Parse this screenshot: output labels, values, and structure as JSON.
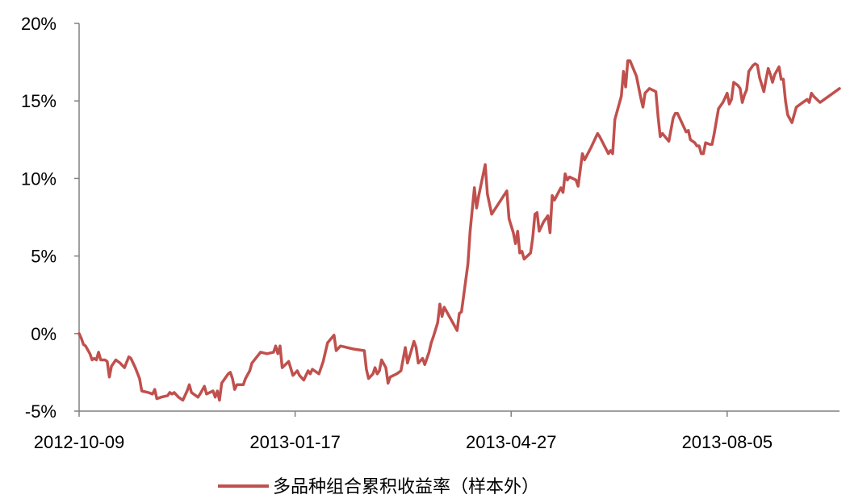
{
  "chart_data": {
    "type": "line",
    "title": "",
    "xlabel": "",
    "ylabel": "",
    "y_unit": "%",
    "ylim": [
      -5,
      20
    ],
    "y_ticks": [
      -5,
      0,
      5,
      10,
      15,
      20
    ],
    "y_tick_labels": [
      "-5%",
      "0%",
      "5%",
      "10%",
      "15%",
      "20%"
    ],
    "x_tick_labels": [
      "2012-10-09",
      "2013-01-17",
      "2013-04-27",
      "2013-08-05"
    ],
    "grid": false,
    "legend_position": "bottom",
    "colors": {
      "series": "#C0504D",
      "axis": "#808080"
    },
    "series": [
      {
        "name": "多品种组合累积收益率（样本外）",
        "points": [
          [
            "2012-10-09",
            0.0
          ],
          [
            "2012-10-10",
            -0.3
          ],
          [
            "2012-10-11",
            -0.7
          ],
          [
            "2012-10-12",
            -0.8
          ],
          [
            "2012-10-14",
            -1.3
          ],
          [
            "2012-10-15",
            -1.7
          ],
          [
            "2012-10-16",
            -1.6
          ],
          [
            "2012-10-17",
            -1.7
          ],
          [
            "2012-10-18",
            -1.2
          ],
          [
            "2012-10-19",
            -1.7
          ],
          [
            "2012-10-21",
            -1.7
          ],
          [
            "2012-10-22",
            -1.8
          ],
          [
            "2012-10-23",
            -2.8
          ],
          [
            "2012-10-24",
            -2.1
          ],
          [
            "2012-10-26",
            -1.7
          ],
          [
            "2012-10-28",
            -1.9
          ],
          [
            "2012-10-30",
            -2.2
          ],
          [
            "2012-11-01",
            -1.5
          ],
          [
            "2012-11-02",
            -1.6
          ],
          [
            "2012-11-04",
            -2.2
          ],
          [
            "2012-11-06",
            -2.9
          ],
          [
            "2012-11-07",
            -3.7
          ],
          [
            "2012-11-10",
            -3.8
          ],
          [
            "2012-11-12",
            -3.9
          ],
          [
            "2012-11-13",
            -3.6
          ],
          [
            "2012-11-14",
            -4.2
          ],
          [
            "2012-11-16",
            -4.1
          ],
          [
            "2012-11-19",
            -4.0
          ],
          [
            "2012-11-20",
            -3.8
          ],
          [
            "2012-11-21",
            -3.9
          ],
          [
            "2012-11-22",
            -3.8
          ],
          [
            "2012-11-24",
            -4.1
          ],
          [
            "2012-11-26",
            -4.3
          ],
          [
            "2012-11-28",
            -3.7
          ],
          [
            "2012-11-29",
            -3.3
          ],
          [
            "2012-11-30",
            -3.8
          ],
          [
            "2012-12-03",
            -4.1
          ],
          [
            "2012-12-04",
            -3.9
          ],
          [
            "2012-12-06",
            -3.4
          ],
          [
            "2012-12-07",
            -3.9
          ],
          [
            "2012-12-10",
            -3.7
          ],
          [
            "2012-12-11",
            -4.1
          ],
          [
            "2012-12-12",
            -3.7
          ],
          [
            "2012-12-13",
            -4.3
          ],
          [
            "2012-12-14",
            -3.2
          ],
          [
            "2012-12-17",
            -2.6
          ],
          [
            "2012-12-18",
            -2.5
          ],
          [
            "2012-12-19",
            -2.9
          ],
          [
            "2012-12-20",
            -3.6
          ],
          [
            "2012-12-21",
            -3.3
          ],
          [
            "2012-12-24",
            -3.3
          ],
          [
            "2012-12-25",
            -2.9
          ],
          [
            "2012-12-27",
            -2.4
          ],
          [
            "2012-12-28",
            -1.9
          ],
          [
            "2013-01-01",
            -1.2
          ],
          [
            "2013-01-04",
            -1.3
          ],
          [
            "2013-01-07",
            -1.2
          ],
          [
            "2013-01-08",
            -0.8
          ],
          [
            "2013-01-09",
            -1.3
          ],
          [
            "2013-01-10",
            -0.8
          ],
          [
            "2013-01-11",
            -2.2
          ],
          [
            "2013-01-14",
            -1.8
          ],
          [
            "2013-01-16",
            -2.7
          ],
          [
            "2013-01-18",
            -2.4
          ],
          [
            "2013-01-19",
            -2.7
          ],
          [
            "2013-01-21",
            -3.0
          ],
          [
            "2013-01-23",
            -2.4
          ],
          [
            "2013-01-24",
            -2.6
          ],
          [
            "2013-01-25",
            -2.3
          ],
          [
            "2013-01-26",
            -2.4
          ],
          [
            "2013-01-28",
            -2.6
          ],
          [
            "2013-01-30",
            -1.8
          ],
          [
            "2013-02-01",
            -0.6
          ],
          [
            "2013-02-04",
            -0.1
          ],
          [
            "2013-02-05",
            -1.1
          ],
          [
            "2013-02-07",
            -0.8
          ],
          [
            "2013-02-13",
            -1.0
          ],
          [
            "2013-02-18",
            -1.1
          ],
          [
            "2013-02-19",
            -2.3
          ],
          [
            "2013-02-20",
            -2.9
          ],
          [
            "2013-02-22",
            -2.6
          ],
          [
            "2013-02-23",
            -2.2
          ],
          [
            "2013-02-24",
            -2.6
          ],
          [
            "2013-02-25",
            -2.4
          ],
          [
            "2013-02-26",
            -1.7
          ],
          [
            "2013-02-28",
            -2.2
          ],
          [
            "2013-03-01",
            -3.2
          ],
          [
            "2013-03-02",
            -2.8
          ],
          [
            "2013-03-05",
            -2.6
          ],
          [
            "2013-03-07",
            -2.4
          ],
          [
            "2013-03-09",
            -0.9
          ],
          [
            "2013-03-10",
            -1.9
          ],
          [
            "2013-03-12",
            -1.0
          ],
          [
            "2013-03-13",
            -0.5
          ],
          [
            "2013-03-14",
            -0.9
          ],
          [
            "2013-03-15",
            -1.9
          ],
          [
            "2013-03-17",
            -1.6
          ],
          [
            "2013-03-18",
            -2.0
          ],
          [
            "2013-03-20",
            -1.2
          ],
          [
            "2013-03-21",
            -0.6
          ],
          [
            "2013-03-22",
            -0.2
          ],
          [
            "2013-03-24",
            0.7
          ],
          [
            "2013-03-25",
            1.9
          ],
          [
            "2013-03-26",
            1.1
          ],
          [
            "2013-03-27",
            1.7
          ],
          [
            "2013-04-02",
            0.2
          ],
          [
            "2013-04-03",
            1.3
          ],
          [
            "2013-04-04",
            1.4
          ],
          [
            "2013-04-07",
            4.5
          ],
          [
            "2013-04-08",
            6.6
          ],
          [
            "2013-04-10",
            9.4
          ],
          [
            "2013-04-11",
            8.1
          ],
          [
            "2013-04-12",
            8.9
          ],
          [
            "2013-04-15",
            10.9
          ],
          [
            "2013-04-16",
            9.0
          ],
          [
            "2013-04-18",
            7.7
          ],
          [
            "2013-04-25",
            9.2
          ],
          [
            "2013-04-26",
            7.4
          ],
          [
            "2013-04-28",
            6.5
          ],
          [
            "2013-04-29",
            5.8
          ],
          [
            "2013-04-30",
            6.6
          ],
          [
            "2013-05-01",
            5.2
          ],
          [
            "2013-05-02",
            5.3
          ],
          [
            "2013-05-03",
            4.8
          ],
          [
            "2013-05-06",
            5.2
          ],
          [
            "2013-05-07",
            6.2
          ],
          [
            "2013-05-08",
            7.7
          ],
          [
            "2013-05-09",
            7.8
          ],
          [
            "2013-05-10",
            6.6
          ],
          [
            "2013-05-12",
            7.2
          ],
          [
            "2013-05-14",
            7.6
          ],
          [
            "2013-05-15",
            6.5
          ],
          [
            "2013-05-16",
            8.9
          ],
          [
            "2013-05-17",
            8.6
          ],
          [
            "2013-05-20",
            9.4
          ],
          [
            "2013-05-21",
            9.1
          ],
          [
            "2013-05-22",
            10.3
          ],
          [
            "2013-05-23",
            9.9
          ],
          [
            "2013-05-24",
            10.1
          ],
          [
            "2013-05-27",
            9.9
          ],
          [
            "2013-05-28",
            9.5
          ],
          [
            "2013-05-30",
            11.6
          ],
          [
            "2013-05-31",
            11.2
          ],
          [
            "2013-06-03",
            12.0
          ],
          [
            "2013-06-06",
            12.9
          ],
          [
            "2013-06-07",
            12.7
          ],
          [
            "2013-06-11",
            11.6
          ],
          [
            "2013-06-12",
            11.8
          ],
          [
            "2013-06-13",
            11.6
          ],
          [
            "2013-06-14",
            13.8
          ],
          [
            "2013-06-17",
            15.3
          ],
          [
            "2013-06-18",
            16.9
          ],
          [
            "2013-06-19",
            15.9
          ],
          [
            "2013-06-20",
            17.6
          ],
          [
            "2013-06-21",
            17.6
          ],
          [
            "2013-06-24",
            16.6
          ],
          [
            "2013-06-26",
            15.2
          ],
          [
            "2013-06-27",
            14.6
          ],
          [
            "2013-06-28",
            15.5
          ],
          [
            "2013-06-30",
            15.8
          ],
          [
            "2013-07-03",
            15.6
          ],
          [
            "2013-07-04",
            14.0
          ],
          [
            "2013-07-05",
            12.7
          ],
          [
            "2013-07-06",
            12.9
          ],
          [
            "2013-07-09",
            12.4
          ],
          [
            "2013-07-11",
            13.9
          ],
          [
            "2013-07-12",
            14.2
          ],
          [
            "2013-07-13",
            14.2
          ],
          [
            "2013-07-17",
            13.0
          ],
          [
            "2013-07-18",
            13.1
          ],
          [
            "2013-07-19",
            12.5
          ],
          [
            "2013-07-21",
            12.3
          ],
          [
            "2013-07-22",
            12.1
          ],
          [
            "2013-07-23",
            12.1
          ],
          [
            "2013-07-24",
            11.6
          ],
          [
            "2013-07-25",
            11.6
          ],
          [
            "2013-07-26",
            12.3
          ],
          [
            "2013-07-28",
            12.2
          ],
          [
            "2013-07-29",
            12.2
          ],
          [
            "2013-07-30",
            12.9
          ],
          [
            "2013-08-01",
            14.5
          ],
          [
            "2013-08-03",
            14.9
          ],
          [
            "2013-08-04",
            15.2
          ],
          [
            "2013-08-05",
            15.5
          ],
          [
            "2013-08-06",
            14.8
          ],
          [
            "2013-08-07",
            15.1
          ],
          [
            "2013-08-08",
            16.2
          ],
          [
            "2013-08-10",
            16.0
          ],
          [
            "2013-08-11",
            15.8
          ],
          [
            "2013-08-12",
            14.9
          ],
          [
            "2013-08-13",
            15.4
          ],
          [
            "2013-08-14",
            15.7
          ],
          [
            "2013-08-15",
            16.9
          ],
          [
            "2013-08-17",
            17.3
          ],
          [
            "2013-08-18",
            17.4
          ],
          [
            "2013-08-19",
            17.3
          ],
          [
            "2013-08-20",
            16.5
          ],
          [
            "2013-08-22",
            15.6
          ],
          [
            "2013-08-23",
            16.4
          ],
          [
            "2013-08-24",
            17.1
          ],
          [
            "2013-08-25",
            16.7
          ],
          [
            "2013-08-26",
            16.2
          ],
          [
            "2013-08-27",
            16.7
          ],
          [
            "2013-08-29",
            17.2
          ],
          [
            "2013-08-30",
            16.4
          ],
          [
            "2013-08-31",
            16.4
          ],
          [
            "2013-09-01",
            15.0
          ],
          [
            "2013-09-02",
            14.1
          ],
          [
            "2013-09-04",
            13.6
          ],
          [
            "2013-09-05",
            14.1
          ],
          [
            "2013-09-06",
            14.6
          ],
          [
            "2013-09-09",
            14.9
          ],
          [
            "2013-09-11",
            15.1
          ],
          [
            "2013-09-12",
            14.9
          ],
          [
            "2013-09-13",
            15.5
          ],
          [
            "2013-09-14",
            15.3
          ],
          [
            "2013-09-17",
            14.9
          ],
          [
            "2013-09-26",
            15.8
          ]
        ]
      }
    ]
  }
}
